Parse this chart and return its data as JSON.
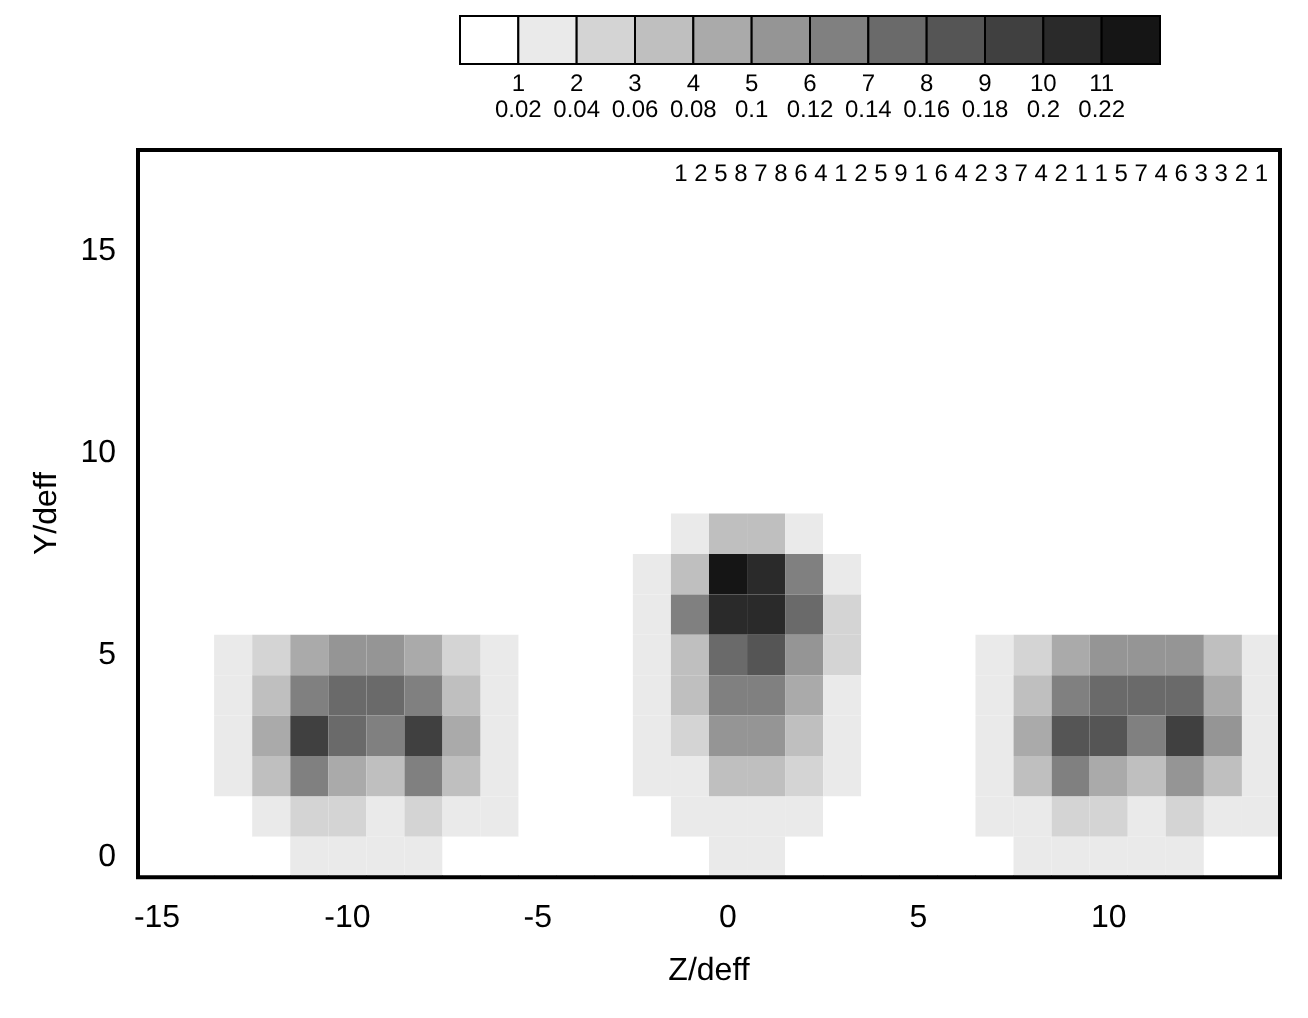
{
  "chart_data": {
    "type": "heatmap",
    "xlabel": "Z/deff",
    "ylabel": "Y/deff",
    "categories": [
      "-15",
      null,
      null,
      null,
      null,
      "-10",
      null,
      null,
      null,
      null,
      "-5",
      null,
      null,
      null,
      null,
      "0",
      null,
      null,
      null,
      null,
      "5",
      null,
      null,
      null,
      null,
      "10",
      null,
      null,
      null,
      null
    ],
    "y_categories": [
      null,
      null,
      "15",
      null,
      null,
      null,
      null,
      "10",
      null,
      null,
      null,
      null,
      "5",
      null,
      null,
      null,
      null,
      "0"
    ],
    "clim": [
      0,
      0.24
    ],
    "cticks": [
      {
        "value": 0.02,
        "label": "1\n0.02"
      },
      {
        "value": 0.04,
        "label": "2\n0.04"
      },
      {
        "value": 0.06,
        "label": "3\n0.06"
      },
      {
        "value": 0.08,
        "label": "4\n0.08"
      },
      {
        "value": 0.1,
        "label": "5\n0.1"
      },
      {
        "value": 0.12,
        "label": "6\n0.12"
      },
      {
        "value": 0.14,
        "label": "7\n0.14"
      },
      {
        "value": 0.16,
        "label": "8\n0.16"
      },
      {
        "value": 0.18,
        "label": "9\n0.18"
      },
      {
        "value": 0.2,
        "label": "10\n0.2"
      },
      {
        "value": 0.22,
        "label": "11\n0.22"
      }
    ],
    "cells": [
      [
        0,
        0,
        0,
        0,
        0,
        0,
        0,
        0,
        0,
        0,
        0,
        0,
        0,
        0,
        0,
        0,
        0,
        0,
        0,
        0,
        0,
        0,
        0,
        0,
        0,
        0,
        0,
        0,
        0,
        0
      ],
      [
        0,
        0,
        0,
        0,
        0,
        0,
        0,
        0,
        0,
        0,
        0,
        0,
        0,
        0,
        0,
        0,
        0,
        0,
        0,
        0,
        0,
        0,
        0,
        0,
        0,
        0,
        0,
        0,
        0,
        0
      ],
      [
        0,
        0,
        0,
        0,
        0,
        0,
        0,
        0,
        0,
        0,
        0,
        0,
        0,
        0,
        0,
        0,
        0,
        0,
        0,
        0,
        0,
        0,
        0,
        0,
        0,
        0,
        0,
        0,
        0,
        0
      ],
      [
        0,
        0,
        0,
        0,
        0,
        0,
        0,
        0,
        0,
        0,
        0,
        0,
        0,
        0,
        0,
        0,
        0,
        0,
        0,
        0,
        0,
        0,
        0,
        0,
        0,
        0,
        0,
        0,
        0,
        0
      ],
      [
        0,
        0,
        0,
        0,
        0,
        0,
        0,
        0,
        0,
        0,
        0,
        0,
        0,
        0,
        0,
        0,
        0,
        0,
        0,
        0,
        0,
        0,
        0,
        0,
        0,
        0,
        0,
        0,
        0,
        0
      ],
      [
        0,
        0,
        0,
        0,
        0,
        0,
        0,
        0,
        0,
        0,
        0,
        0,
        0,
        0,
        0,
        0,
        0,
        0,
        0,
        0,
        0,
        0,
        0,
        0,
        0,
        0,
        0,
        0,
        0,
        0
      ],
      [
        0,
        0,
        0,
        0,
        0,
        0,
        0,
        0,
        0,
        0,
        0,
        0,
        0,
        0,
        0,
        0,
        0,
        0,
        0,
        0,
        0,
        0,
        0,
        0,
        0,
        0,
        0,
        0,
        0,
        0
      ],
      [
        0,
        0,
        0,
        0,
        0,
        0,
        0,
        0,
        0,
        0,
        0,
        0,
        0,
        0,
        0,
        0,
        0,
        0,
        0,
        0,
        0,
        0,
        0,
        0,
        0,
        0,
        0,
        0,
        0,
        0
      ],
      [
        0,
        0,
        0,
        0,
        0,
        0,
        0,
        0,
        0,
        0,
        0,
        0,
        0,
        0,
        0,
        0,
        0,
        0,
        0,
        0,
        0,
        0,
        0,
        0,
        0,
        0,
        0,
        0,
        0,
        0
      ],
      [
        0,
        0,
        0,
        0,
        0,
        0,
        0,
        0,
        0,
        0,
        0,
        0,
        0,
        0,
        0.02,
        0.06,
        0.06,
        0.02,
        0,
        0,
        0,
        0,
        0,
        0,
        0,
        0,
        0,
        0,
        0,
        0
      ],
      [
        0,
        0,
        0,
        0,
        0,
        0,
        0,
        0,
        0,
        0,
        0,
        0,
        0,
        0.02,
        0.06,
        0.22,
        0.2,
        0.12,
        0.02,
        0,
        0,
        0,
        0,
        0,
        0,
        0,
        0,
        0,
        0,
        0
      ],
      [
        0,
        0,
        0,
        0,
        0,
        0,
        0,
        0,
        0,
        0,
        0,
        0,
        0,
        0.02,
        0.12,
        0.2,
        0.2,
        0.14,
        0.04,
        0,
        0,
        0,
        0,
        0,
        0,
        0,
        0,
        0,
        0,
        0
      ],
      [
        0,
        0,
        0.02,
        0.04,
        0.08,
        0.1,
        0.1,
        0.08,
        0.04,
        0.02,
        0,
        0,
        0,
        0.02,
        0.06,
        0.14,
        0.16,
        0.1,
        0.04,
        0,
        0,
        0,
        0.02,
        0.04,
        0.08,
        0.1,
        0.1,
        0.1,
        0.06,
        0.02
      ],
      [
        0,
        0,
        0.02,
        0.06,
        0.12,
        0.14,
        0.14,
        0.12,
        0.06,
        0.02,
        0,
        0,
        0,
        0.02,
        0.06,
        0.12,
        0.12,
        0.08,
        0.02,
        0,
        0,
        0,
        0.02,
        0.06,
        0.12,
        0.14,
        0.14,
        0.14,
        0.08,
        0.02
      ],
      [
        0,
        0,
        0.02,
        0.08,
        0.18,
        0.14,
        0.12,
        0.18,
        0.08,
        0.02,
        0,
        0,
        0,
        0.02,
        0.04,
        0.1,
        0.1,
        0.06,
        0.02,
        0,
        0,
        0,
        0.02,
        0.08,
        0.16,
        0.16,
        0.12,
        0.18,
        0.1,
        0.02
      ],
      [
        0,
        0,
        0.02,
        0.06,
        0.12,
        0.08,
        0.06,
        0.12,
        0.06,
        0.02,
        0,
        0,
        0,
        0.02,
        0.02,
        0.06,
        0.06,
        0.04,
        0.02,
        0,
        0,
        0,
        0.02,
        0.06,
        0.12,
        0.08,
        0.06,
        0.1,
        0.06,
        0.02
      ],
      [
        0,
        0,
        0,
        0.02,
        0.04,
        0.04,
        0.02,
        0.04,
        0.02,
        0.02,
        0,
        0,
        0,
        0,
        0.02,
        0.02,
        0.02,
        0.02,
        0,
        0,
        0,
        0,
        0.02,
        0.02,
        0.04,
        0.04,
        0.02,
        0.04,
        0.02,
        0.02
      ],
      [
        0,
        0,
        0,
        0,
        0.02,
        0.02,
        0.02,
        0.02,
        0,
        0,
        0,
        0,
        0,
        0,
        0,
        0.02,
        0.02,
        0,
        0,
        0,
        0,
        0,
        0,
        0.02,
        0.02,
        0.02,
        0.02,
        0.02,
        0,
        0
      ]
    ],
    "annotations": [
      "1",
      "2",
      "5",
      "8",
      "7",
      "8",
      "6",
      "4",
      "1",
      "2",
      "5",
      "9",
      "1",
      "6",
      "4",
      "2",
      "3",
      "7",
      "4",
      "2",
      "1",
      "1",
      "5",
      "7",
      "4",
      "6",
      "3",
      "3",
      "2",
      "1"
    ]
  }
}
